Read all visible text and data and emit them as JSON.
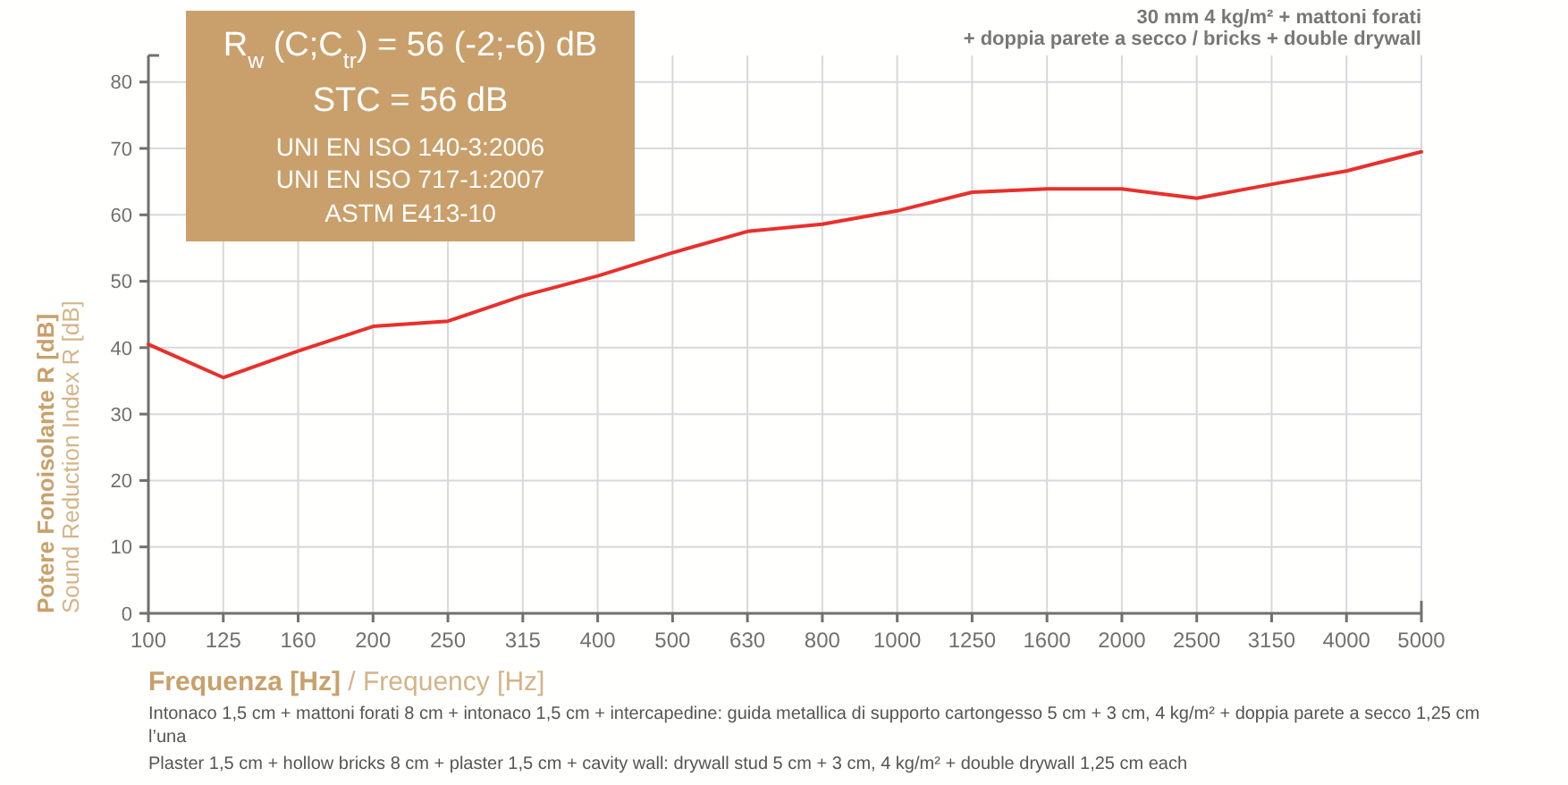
{
  "chart_data": {
    "type": "line",
    "title": "30 mm 4 kg/m² + mattoni forati\n+ doppia parete a secco / bricks + double drywall",
    "xlabel": "Frequenza [Hz] / Frequency [Hz]",
    "ylabel": "Potere Fonoisolante R [dB]\nSound Reduction Index R [dB]",
    "categories": [
      "100",
      "125",
      "160",
      "200",
      "250",
      "315",
      "400",
      "500",
      "630",
      "800",
      "1000",
      "1250",
      "1600",
      "2000",
      "2500",
      "3150",
      "4000",
      "5000"
    ],
    "series": [
      {
        "color": "#e8302c",
        "values": [
          40.5,
          35.5,
          39.5,
          43.2,
          44,
          47.8,
          50.8,
          54.3,
          57.5,
          58.6,
          60.6,
          63.4,
          63.9,
          63.9,
          62.5,
          64.6,
          66.6,
          69.5
        ]
      }
    ],
    "ylim": [
      0,
      84
    ],
    "yticks": [
      0,
      10,
      20,
      30,
      40,
      50,
      60,
      70,
      80
    ],
    "grid": true,
    "marker": "none",
    "line_style": "solid",
    "annotations": [
      "R$_{w}$ (C;C$_{tr}$) = 56 (-2;-6) dB",
      "STC = 56 dB",
      "UNI EN ISO 140-3:2006",
      "UNI EN ISO 717-1:2007",
      "ASTM E413-10",
      "Intonaco 1,5 cm + mattoni forati 8 cm + intonaco 1,5 cm + intercapedine: guida metallica di supporto cartongesso 5 cm + 3 cm, 4 kg/m² + doppia parete a secco 1,25 cm l’una",
      "Plaster 1,5 cm + hollow bricks 8 cm + plaster 1,5 cm + cavity wall: drywall stud 5 cm + 3 cm, 4 kg/m² + double drywall 1,25 cm each"
    ]
  }
}
